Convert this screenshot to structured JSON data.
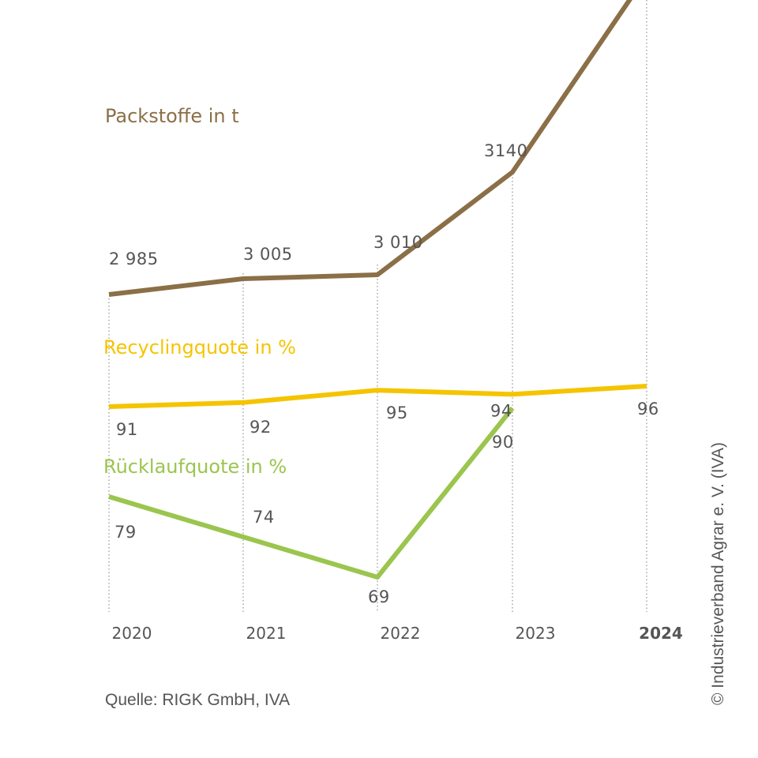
{
  "chart_data": {
    "type": "line",
    "x": [
      "2020",
      "2021",
      "2022",
      "2023",
      "2024"
    ],
    "x_bold": [
      "2024"
    ],
    "series": [
      {
        "name": "Packstoffe in t",
        "color": "#8b6f47",
        "values": [
          2985,
          3005,
          3010,
          3140,
          null
        ],
        "labels": [
          "2 985",
          "3 005",
          "3 010",
          "3140",
          ""
        ]
      },
      {
        "name": "Recyclingquote in %",
        "color": "#f5c400",
        "values": [
          91,
          92,
          95,
          94,
          96
        ],
        "labels": [
          "91",
          "92",
          "95",
          "94",
          "96"
        ]
      },
      {
        "name": "Rücklaufquote in %",
        "color": "#9bc54e",
        "values": [
          79,
          74,
          69,
          90,
          null
        ],
        "labels": [
          "79",
          "74",
          "69",
          "90",
          ""
        ]
      }
    ],
    "grid": "vertical dotted lines at each year"
  },
  "source": "Quelle: RIGK GmbH, IVA",
  "credit": "© Industrieverband Agrar e. V. (IVA)"
}
